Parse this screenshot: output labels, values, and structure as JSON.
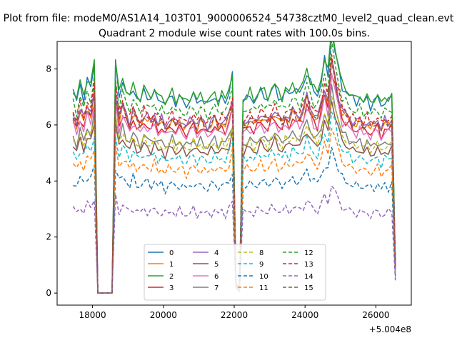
{
  "chart_data": {
    "type": "line",
    "suptitle": "Plot from file: modeM0/AS1A14_103T01_9000006524_54738cztM0_level2_quad_clean.evt",
    "title": "Quadrant 2 module wise count rates with 100.0s bins.",
    "xlabel": "",
    "ylabel": "",
    "x_offset_label": "+5.004e8",
    "xlim": [
      17000,
      27000
    ],
    "ylim": [
      -0.43,
      8.98
    ],
    "xticks": [
      18000,
      20000,
      22000,
      24000,
      26000
    ],
    "xtick_labels": [
      "18000",
      "20000",
      "22000",
      "24000",
      "26000"
    ],
    "yticks": [
      0,
      2,
      4,
      6,
      8
    ],
    "ytick_labels": [
      "0",
      "2",
      "4",
      "6",
      "8"
    ],
    "x_start": 17450,
    "x_step": 100,
    "saa_start_idx": 7,
    "saa_end_idx": 11,
    "dip_idx": 46,
    "profile": [
      1.0,
      0.95,
      1.03,
      0.97,
      1.05,
      1.02,
      1.13,
      0,
      0,
      0,
      0,
      0,
      1.13,
      0.98,
      1.05,
      1.0,
      0.96,
      1.02,
      0.97,
      0.95,
      1.0,
      0.98,
      0.96,
      1.0,
      0.95,
      0.97,
      0.93,
      0.96,
      0.98,
      0.94,
      0.97,
      0.95,
      0.93,
      0.96,
      0.98,
      0.94,
      0.97,
      0.95,
      0.93,
      0.96,
      0.98,
      0.94,
      0.97,
      0.95,
      1.0,
      1.08,
      0.05,
      0.02,
      0.95,
      0.96,
      0.98,
      0.95,
      0.97,
      1.0,
      0.98,
      0.96,
      1.0,
      1.02,
      0.98,
      0.96,
      1.0,
      0.98,
      1.02,
      1.0,
      0.99,
      1.03,
      1.1,
      1.04,
      1.0,
      0.98,
      1.05,
      1.15,
      1.08,
      1.3,
      1.2,
      1.1,
      1.02,
      1.0,
      0.98,
      0.96,
      0.95,
      0.97,
      0.94,
      0.96,
      0.93,
      0.95,
      0.97,
      0.92,
      0.96,
      0.95,
      0.97,
      0.15
    ],
    "legend": {
      "location": "lower center",
      "ncol": 4
    },
    "series": [
      {
        "name": "0",
        "color": "#1f77b4",
        "style": "solid",
        "base": 7.2
      },
      {
        "name": "1",
        "color": "#ff7f0e",
        "style": "solid",
        "base": 6.3
      },
      {
        "name": "2",
        "color": "#2ca02c",
        "style": "solid",
        "base": 7.3
      },
      {
        "name": "3",
        "color": "#d62728",
        "style": "solid",
        "base": 6.1
      },
      {
        "name": "4",
        "color": "#9467bd",
        "style": "solid",
        "base": 6.4
      },
      {
        "name": "5",
        "color": "#8c564b",
        "style": "solid",
        "base": 5.3
      },
      {
        "name": "6",
        "color": "#e377c2",
        "style": "solid",
        "base": 6.0
      },
      {
        "name": "7",
        "color": "#7f7f7f",
        "style": "solid",
        "base": 5.6
      },
      {
        "name": "8",
        "color": "#bcbd22",
        "style": "dashed",
        "base": 5.5
      },
      {
        "name": "9",
        "color": "#17becf",
        "style": "dashed",
        "base": 5.0
      },
      {
        "name": "10",
        "color": "#1f77b4",
        "style": "dashed",
        "base": 4.0
      },
      {
        "name": "11",
        "color": "#ff7f0e",
        "style": "dashed",
        "base": 4.6
      },
      {
        "name": "12",
        "color": "#2ca02c",
        "style": "dashed",
        "base": 6.8
      },
      {
        "name": "13",
        "color": "#d62728",
        "style": "dashed",
        "base": 6.5
      },
      {
        "name": "14",
        "color": "#9467bd",
        "style": "dashed",
        "base": 3.0
      },
      {
        "name": "15",
        "color": "#8c564b",
        "style": "dashed",
        "base": 6.3
      }
    ]
  }
}
